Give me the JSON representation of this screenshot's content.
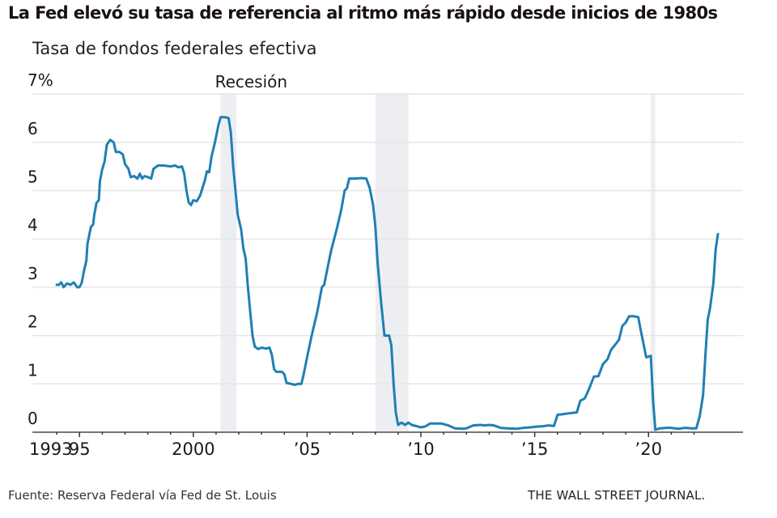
{
  "header": {
    "title": "La Fed elevó su tasa de referencia al ritmo más rápido desde inicios de 1980s",
    "subtitle": "Tasa de fondos federales efectiva"
  },
  "footer": {
    "source": "Fuente: Reserva Federal vía Fed de St. Louis",
    "credit": "THE WALL STREET JOURNAL."
  },
  "colors": {
    "line": "#1f7fb4",
    "recession": "#eceef2",
    "grid": "#e6e6e6",
    "axis": "#777777"
  },
  "chart_data": {
    "type": "line",
    "title": "La Fed elevó su tasa de referencia al ritmo más rápido desde inicios de 1980s",
    "subtitle": "Tasa de fondos federales efectiva",
    "xlabel": "",
    "ylabel": "",
    "xlim": [
      1993,
      2023.5
    ],
    "ylim": [
      0,
      7
    ],
    "grid": true,
    "y_ticks": [
      {
        "value": 0,
        "label": "0"
      },
      {
        "value": 1,
        "label": "1"
      },
      {
        "value": 2,
        "label": "2"
      },
      {
        "value": 3,
        "label": "3"
      },
      {
        "value": 4,
        "label": "4"
      },
      {
        "value": 5,
        "label": "5"
      },
      {
        "value": 6,
        "label": "6"
      },
      {
        "value": 7,
        "label": "7%"
      }
    ],
    "x_major_ticks": [
      {
        "value": 1993,
        "label": "1993"
      },
      {
        "value": 1995,
        "label": "95"
      },
      {
        "value": 2000,
        "label": "2000"
      },
      {
        "value": 2005,
        "label": "’05"
      },
      {
        "value": 2010,
        "label": "’10"
      },
      {
        "value": 2015,
        "label": "’15"
      },
      {
        "value": 2020,
        "label": "’20"
      }
    ],
    "x_minor_ticks": [
      1994,
      1996,
      1997,
      1998,
      1999,
      2001,
      2002,
      2003,
      2004,
      2006,
      2007,
      2008,
      2009,
      2011,
      2012,
      2013,
      2014,
      2016,
      2017,
      2018,
      2019,
      2021,
      2022
    ],
    "annotations": [
      {
        "text": "Recesión",
        "x": 2001.2,
        "y": 7.15
      }
    ],
    "recessions": [
      {
        "start": 2001.2,
        "end": 2001.9
      },
      {
        "start": 2008.0,
        "end": 2009.45
      },
      {
        "start": 2020.1,
        "end": 2020.3
      }
    ],
    "series": [
      {
        "name": "Tasa de fondos federales efectiva",
        "points": [
          [
            1994.0,
            3.05
          ],
          [
            1994.1,
            3.05
          ],
          [
            1994.2,
            3.1
          ],
          [
            1994.3,
            3.0
          ],
          [
            1994.45,
            3.08
          ],
          [
            1994.6,
            3.05
          ],
          [
            1994.75,
            3.1
          ],
          [
            1994.9,
            3.0
          ],
          [
            1995.0,
            3.0
          ],
          [
            1995.1,
            3.1
          ],
          [
            1995.2,
            3.35
          ],
          [
            1995.3,
            3.55
          ],
          [
            1995.35,
            3.9
          ],
          [
            1995.5,
            4.25
          ],
          [
            1995.6,
            4.3
          ],
          [
            1995.65,
            4.5
          ],
          [
            1995.75,
            4.75
          ],
          [
            1995.85,
            4.8
          ],
          [
            1995.9,
            5.2
          ],
          [
            1996.0,
            5.45
          ],
          [
            1996.1,
            5.6
          ],
          [
            1996.2,
            5.95
          ],
          [
            1996.35,
            6.05
          ],
          [
            1996.5,
            6.0
          ],
          [
            1996.6,
            5.8
          ],
          [
            1996.75,
            5.8
          ],
          [
            1996.9,
            5.75
          ],
          [
            1997.0,
            5.55
          ],
          [
            1997.15,
            5.45
          ],
          [
            1997.25,
            5.28
          ],
          [
            1997.4,
            5.3
          ],
          [
            1997.55,
            5.25
          ],
          [
            1997.65,
            5.35
          ],
          [
            1997.75,
            5.25
          ],
          [
            1997.85,
            5.3
          ],
          [
            1998.0,
            5.28
          ],
          [
            1998.15,
            5.25
          ],
          [
            1998.25,
            5.45
          ],
          [
            1998.45,
            5.52
          ],
          [
            1998.7,
            5.52
          ],
          [
            1999.0,
            5.5
          ],
          [
            1999.2,
            5.52
          ],
          [
            1999.35,
            5.48
          ],
          [
            1999.5,
            5.5
          ],
          [
            1999.6,
            5.35
          ],
          [
            1999.7,
            5.0
          ],
          [
            1999.8,
            4.75
          ],
          [
            1999.9,
            4.7
          ],
          [
            2000.0,
            4.8
          ],
          [
            2000.15,
            4.78
          ],
          [
            2000.3,
            4.9
          ],
          [
            2000.4,
            5.05
          ],
          [
            2000.5,
            5.2
          ],
          [
            2000.6,
            5.4
          ],
          [
            2000.7,
            5.38
          ],
          [
            2000.8,
            5.7
          ],
          [
            2000.95,
            6.0
          ],
          [
            2001.1,
            6.35
          ],
          [
            2001.2,
            6.52
          ],
          [
            2001.4,
            6.52
          ],
          [
            2001.55,
            6.5
          ],
          [
            2001.65,
            6.2
          ],
          [
            2001.75,
            5.5
          ],
          [
            2001.85,
            5.0
          ],
          [
            2001.95,
            4.5
          ],
          [
            2002.1,
            4.2
          ],
          [
            2002.2,
            3.8
          ],
          [
            2002.3,
            3.6
          ],
          [
            2002.4,
            3.0
          ],
          [
            2002.5,
            2.5
          ],
          [
            2002.6,
            2.0
          ],
          [
            2002.7,
            1.77
          ],
          [
            2002.85,
            1.72
          ],
          [
            2003.0,
            1.75
          ],
          [
            2003.2,
            1.73
          ],
          [
            2003.35,
            1.75
          ],
          [
            2003.45,
            1.6
          ],
          [
            2003.55,
            1.3
          ],
          [
            2003.65,
            1.25
          ],
          [
            2003.9,
            1.25
          ],
          [
            2004.0,
            1.2
          ],
          [
            2004.1,
            1.02
          ],
          [
            2004.3,
            1.0
          ],
          [
            2004.45,
            0.98
          ],
          [
            2004.6,
            1.0
          ],
          [
            2004.75,
            1.0
          ],
          [
            2004.85,
            1.2
          ],
          [
            2005.0,
            1.55
          ],
          [
            2005.2,
            2.0
          ],
          [
            2005.45,
            2.5
          ],
          [
            2005.65,
            3.0
          ],
          [
            2005.75,
            3.05
          ],
          [
            2005.9,
            3.4
          ],
          [
            2006.05,
            3.75
          ],
          [
            2006.3,
            4.2
          ],
          [
            2006.5,
            4.6
          ],
          [
            2006.65,
            5.0
          ],
          [
            2006.75,
            5.05
          ],
          [
            2006.85,
            5.25
          ],
          [
            2007.1,
            5.25
          ],
          [
            2007.4,
            5.26
          ],
          [
            2007.6,
            5.25
          ],
          [
            2007.75,
            5.05
          ],
          [
            2007.9,
            4.7
          ],
          [
            2008.0,
            4.25
          ],
          [
            2008.1,
            3.5
          ],
          [
            2008.25,
            2.7
          ],
          [
            2008.4,
            2.0
          ],
          [
            2008.6,
            2.0
          ],
          [
            2008.7,
            1.8
          ],
          [
            2008.8,
            1.0
          ],
          [
            2008.9,
            0.4
          ],
          [
            2009.0,
            0.15
          ],
          [
            2009.15,
            0.2
          ],
          [
            2009.3,
            0.15
          ],
          [
            2009.45,
            0.2
          ],
          [
            2009.6,
            0.15
          ],
          [
            2009.85,
            0.12
          ],
          [
            2010.0,
            0.1
          ],
          [
            2010.2,
            0.12
          ],
          [
            2010.4,
            0.18
          ],
          [
            2010.6,
            0.18
          ],
          [
            2010.9,
            0.18
          ],
          [
            2011.2,
            0.14
          ],
          [
            2011.5,
            0.08
          ],
          [
            2011.8,
            0.07
          ],
          [
            2012.0,
            0.08
          ],
          [
            2012.3,
            0.14
          ],
          [
            2012.6,
            0.15
          ],
          [
            2012.8,
            0.14
          ],
          [
            2013.0,
            0.15
          ],
          [
            2013.2,
            0.14
          ],
          [
            2013.5,
            0.09
          ],
          [
            2013.8,
            0.08
          ],
          [
            2014.2,
            0.07
          ],
          [
            2014.5,
            0.09
          ],
          [
            2014.8,
            0.1
          ],
          [
            2015.0,
            0.11
          ],
          [
            2015.3,
            0.12
          ],
          [
            2015.6,
            0.14
          ],
          [
            2015.85,
            0.13
          ],
          [
            2016.0,
            0.36
          ],
          [
            2016.2,
            0.37
          ],
          [
            2016.5,
            0.39
          ],
          [
            2016.85,
            0.41
          ],
          [
            2017.0,
            0.65
          ],
          [
            2017.2,
            0.7
          ],
          [
            2017.4,
            0.91
          ],
          [
            2017.6,
            1.15
          ],
          [
            2017.8,
            1.16
          ],
          [
            2018.0,
            1.41
          ],
          [
            2018.2,
            1.51
          ],
          [
            2018.35,
            1.7
          ],
          [
            2018.55,
            1.82
          ],
          [
            2018.7,
            1.91
          ],
          [
            2018.85,
            2.2
          ],
          [
            2019.0,
            2.27
          ],
          [
            2019.15,
            2.4
          ],
          [
            2019.35,
            2.4
          ],
          [
            2019.55,
            2.38
          ],
          [
            2019.65,
            2.13
          ],
          [
            2019.75,
            1.9
          ],
          [
            2019.9,
            1.55
          ],
          [
            2020.1,
            1.58
          ],
          [
            2020.2,
            0.65
          ],
          [
            2020.3,
            0.05
          ],
          [
            2020.5,
            0.08
          ],
          [
            2020.8,
            0.09
          ],
          [
            2021.0,
            0.09
          ],
          [
            2021.3,
            0.07
          ],
          [
            2021.6,
            0.09
          ],
          [
            2021.9,
            0.08
          ],
          [
            2022.1,
            0.08
          ],
          [
            2022.25,
            0.33
          ],
          [
            2022.4,
            0.77
          ],
          [
            2022.5,
            1.58
          ],
          [
            2022.6,
            2.33
          ],
          [
            2022.7,
            2.56
          ],
          [
            2022.85,
            3.08
          ],
          [
            2022.95,
            3.78
          ],
          [
            2023.05,
            4.1
          ]
        ]
      }
    ]
  }
}
